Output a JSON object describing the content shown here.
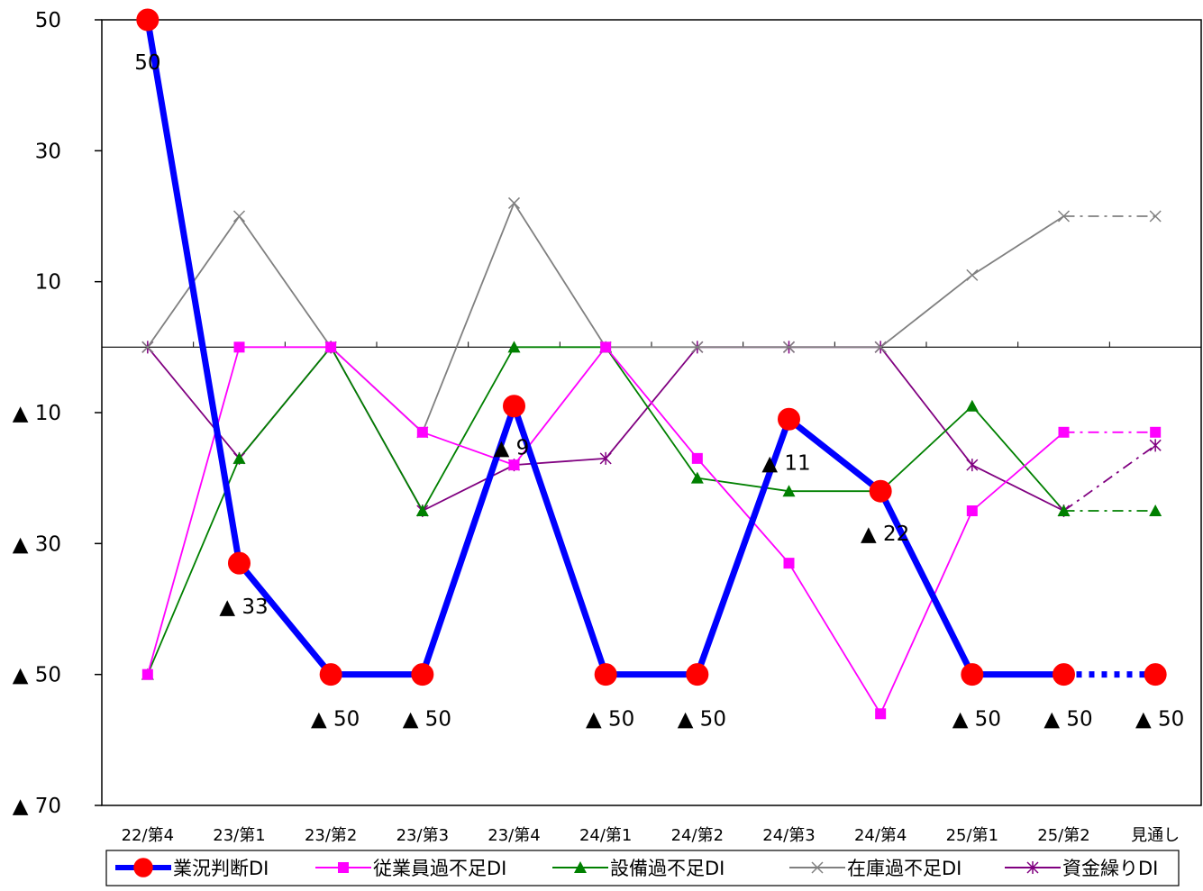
{
  "chart_data": {
    "type": "line",
    "categories": [
      "22/第4",
      "23/第1",
      "23/第2",
      "23/第3",
      "23/第4",
      "24/第1",
      "24/第2",
      "24/第3",
      "24/第4",
      "25/第1",
      "25/第2",
      "見通し"
    ],
    "ylim": [
      -70,
      50
    ],
    "yticks": [
      50,
      30,
      10,
      -10,
      -30,
      -50,
      -70
    ],
    "ytick_labels": [
      "50",
      "30",
      "10",
      "▲ 10",
      "▲ 30",
      "▲ 50",
      "▲ 70"
    ],
    "grid": false,
    "legend_position": "bottom",
    "forecast_segment": "last",
    "series": [
      {
        "name": "業況判断DI",
        "color": "#0000ff",
        "marker": "circle",
        "values": [
          50,
          -33,
          -50,
          -50,
          -9,
          -50,
          -50,
          -11,
          -22,
          -50,
          -50,
          -50
        ],
        "data_labels": [
          "50",
          "▲ 33",
          "▲ 50",
          "▲ 50",
          "▲ 9",
          "▲ 50",
          "▲ 50",
          "▲ 11",
          "▲ 22",
          "▲ 50",
          "▲ 50",
          "▲ 50"
        ]
      },
      {
        "name": "従業員過不足DI",
        "color": "#ff00ff",
        "marker": "square",
        "values": [
          -50,
          0,
          0,
          -13,
          -18,
          0,
          -17,
          -33,
          -56,
          -25,
          -13,
          -13
        ]
      },
      {
        "name": "設備過不足DI",
        "color": "#008000",
        "marker": "triangle",
        "values": [
          -50,
          -17,
          0,
          -25,
          0,
          0,
          -20,
          -22,
          -22,
          -9,
          -25,
          -25
        ]
      },
      {
        "name": "在庫過不足DI",
        "color": "#808080",
        "marker": "x",
        "values": [
          0,
          20,
          0,
          -13,
          22,
          0,
          0,
          0,
          0,
          11,
          20,
          20
        ]
      },
      {
        "name": "資金繰りDI",
        "color": "#800080",
        "marker": "star",
        "values": [
          0,
          -17,
          0,
          -25,
          -18,
          -17,
          0,
          0,
          0,
          -18,
          -25,
          -15
        ]
      }
    ]
  }
}
